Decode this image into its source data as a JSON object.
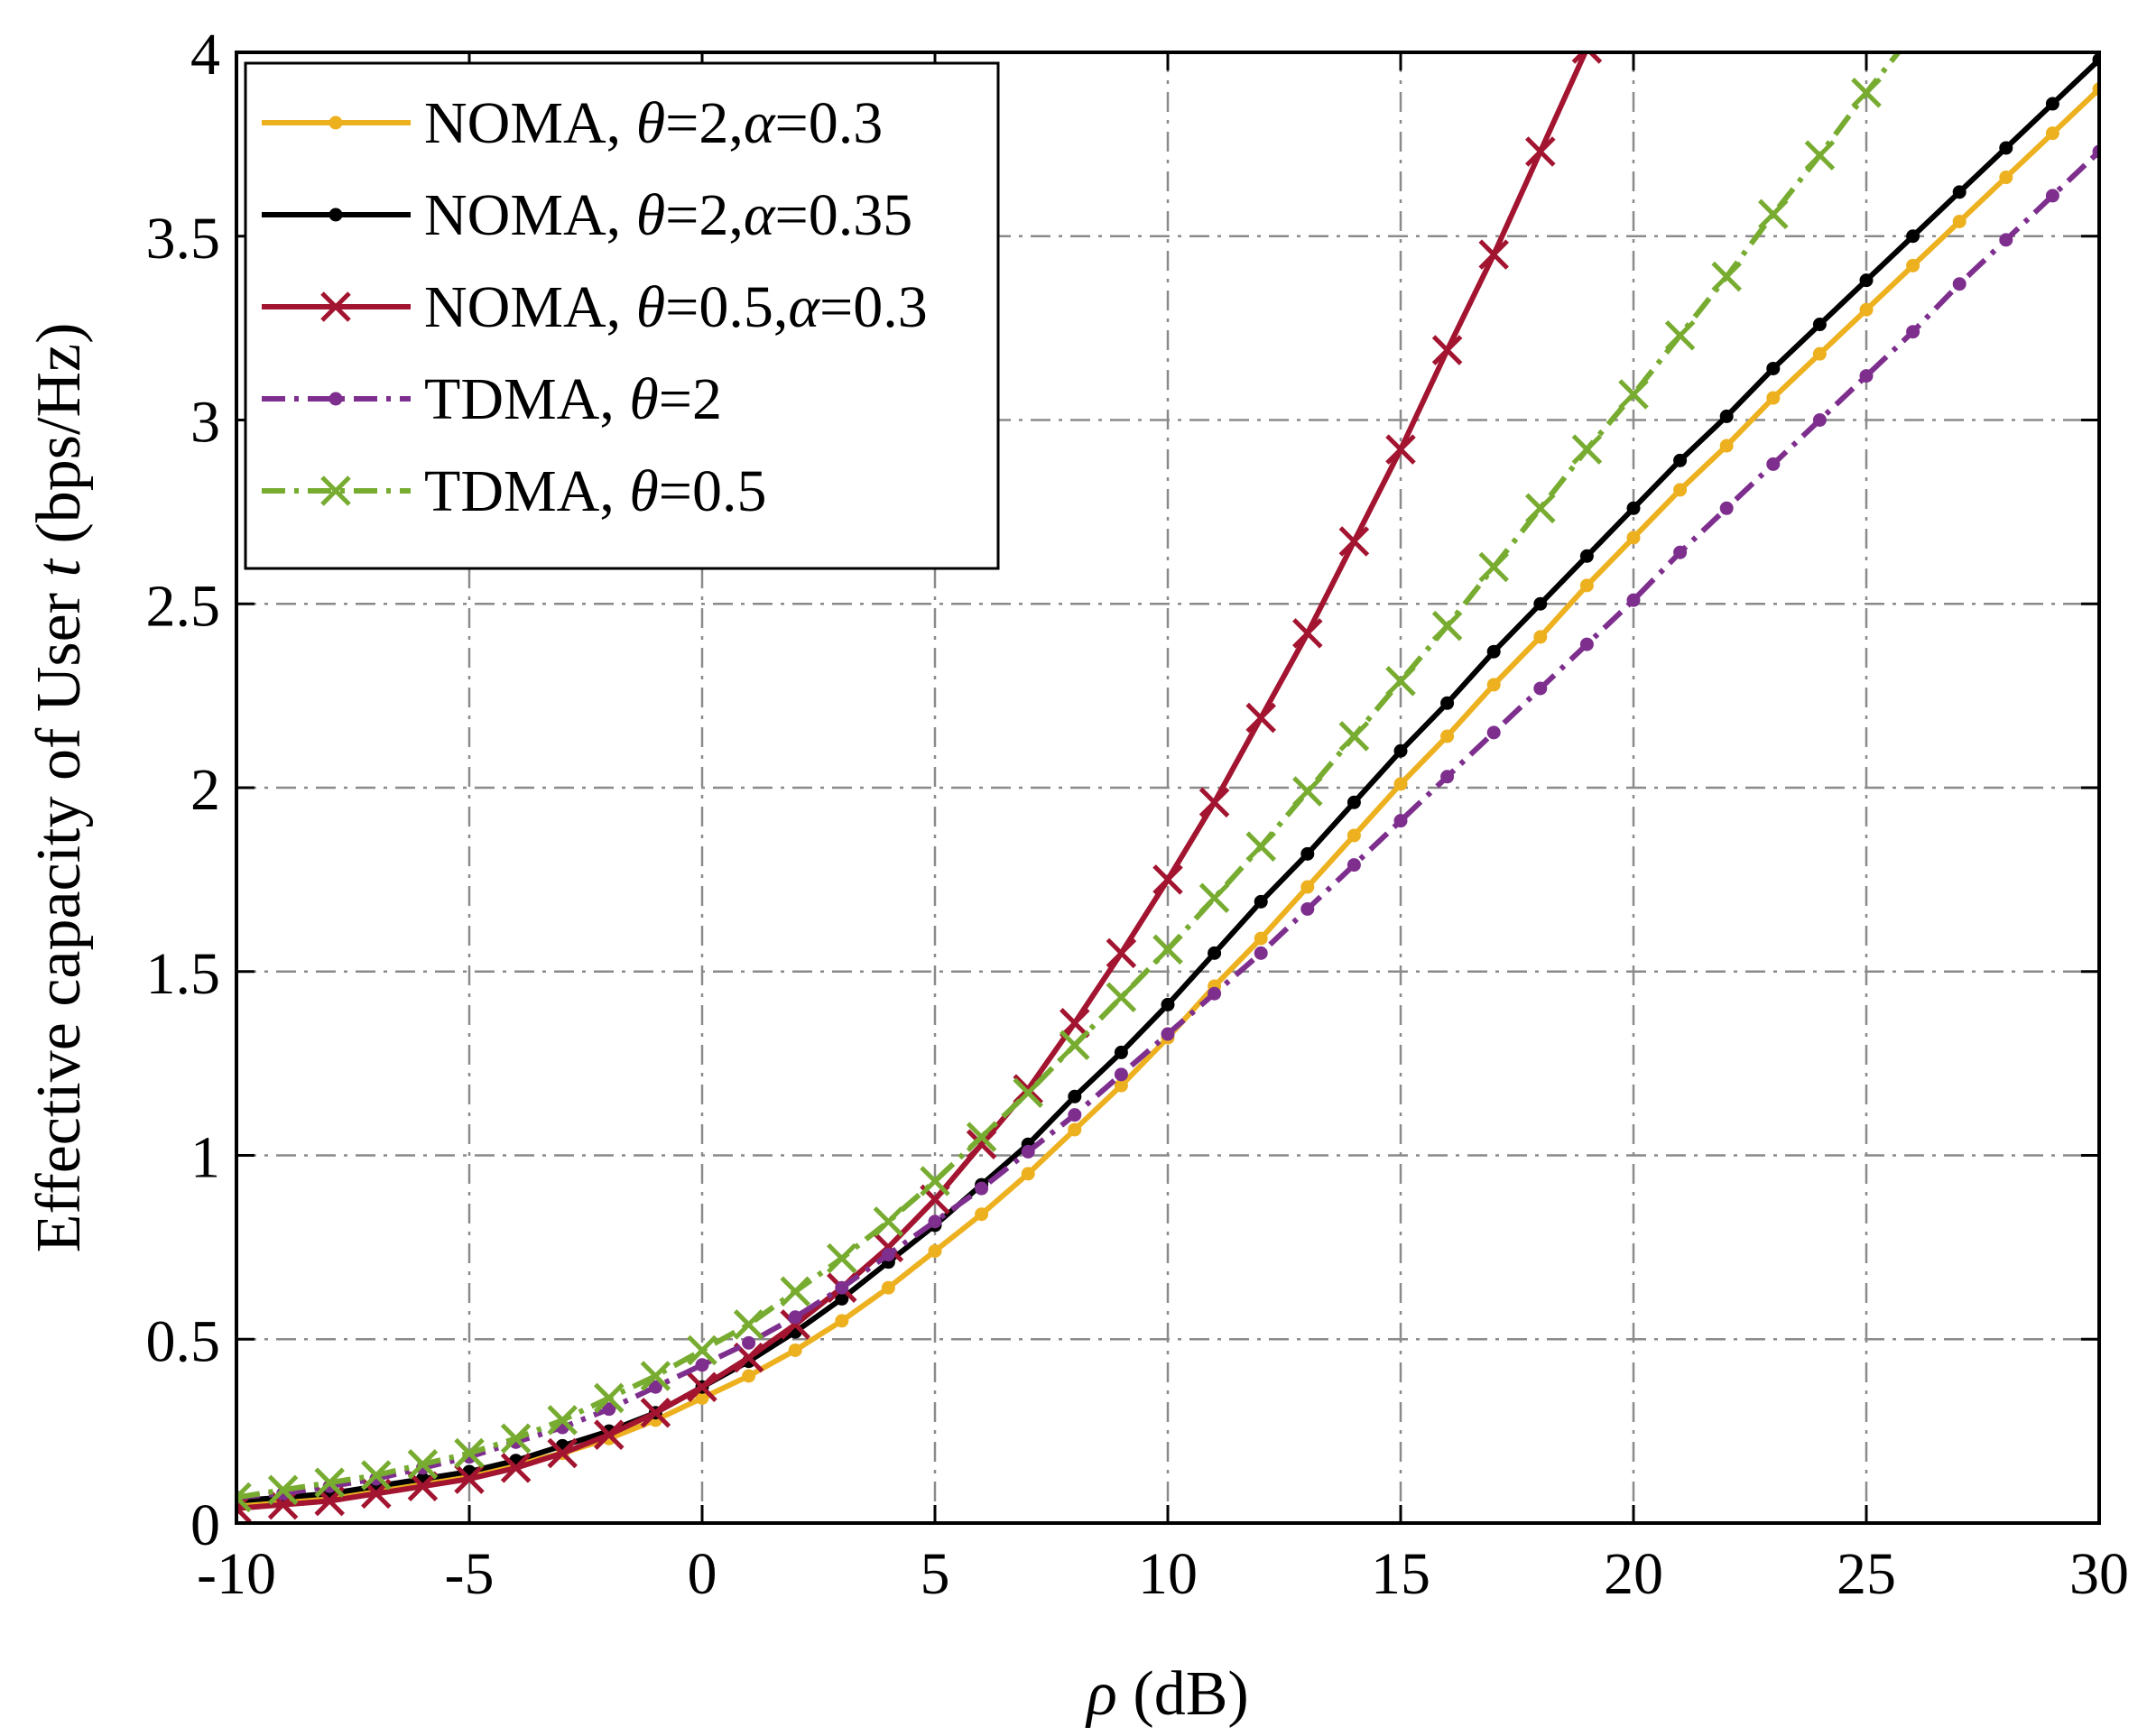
{
  "chart_data": {
    "type": "line",
    "xlabel_symbol": "ρ",
    "xlabel_unit": " (dB)",
    "ylabel_prefix": "Effective capacity of User ",
    "ylabel_symbol": "t",
    "ylabel_unit": " (bps/Hz)",
    "xlim": [
      -10,
      30
    ],
    "ylim": [
      0,
      4
    ],
    "xticks": [
      -10,
      -5,
      0,
      5,
      10,
      15,
      20,
      25,
      30
    ],
    "xtick_labels": [
      "-10",
      "-5",
      "0",
      "5",
      "10",
      "15",
      "20",
      "25",
      "30"
    ],
    "yticks": [
      0,
      0.5,
      1,
      1.5,
      2,
      2.5,
      3,
      3.5,
      4
    ],
    "ytick_labels": [
      "0",
      "0.5",
      "1",
      "1.5",
      "2",
      "2.5",
      "3",
      "3.5",
      "4"
    ],
    "grid": true,
    "legend_position": "top-left",
    "series": [
      {
        "name": "NOMA, θ=2,α=0.3",
        "legend": {
          "prefix": "NOMA, ",
          "parts": [
            [
              "θ",
              true
            ],
            [
              "=2,",
              false
            ],
            [
              "α",
              true
            ],
            [
              "=0.3",
              false
            ]
          ]
        },
        "color": "#EDB120",
        "dash": "solid",
        "marker": "dot",
        "x": [
          -10,
          -9,
          -8,
          -7,
          -6,
          -5,
          -4,
          -3,
          -2,
          -1,
          0,
          1,
          2,
          3,
          4,
          5,
          6,
          7,
          8,
          9,
          10,
          11,
          12,
          13,
          14,
          15,
          16,
          17,
          18,
          19,
          20,
          21,
          22,
          23,
          24,
          25,
          26,
          27,
          28,
          29,
          30
        ],
        "values": [
          0.05,
          0.06,
          0.07,
          0.09,
          0.11,
          0.13,
          0.16,
          0.19,
          0.23,
          0.28,
          0.34,
          0.4,
          0.47,
          0.55,
          0.64,
          0.74,
          0.84,
          0.95,
          1.07,
          1.19,
          1.32,
          1.46,
          1.59,
          1.73,
          1.87,
          2.01,
          2.14,
          2.28,
          2.41,
          2.55,
          2.68,
          2.81,
          2.93,
          3.06,
          3.18,
          3.3,
          3.42,
          3.54,
          3.66,
          3.78,
          3.9
        ]
      },
      {
        "name": "NOMA, θ=2,α=0.35",
        "legend": {
          "prefix": "NOMA, ",
          "parts": [
            [
              "θ",
              true
            ],
            [
              "=2,",
              false
            ],
            [
              "α",
              true
            ],
            [
              "=0.35",
              false
            ]
          ]
        },
        "color": "#000000",
        "dash": "solid",
        "marker": "dot",
        "x": [
          -10,
          -9,
          -8,
          -7,
          -6,
          -5,
          -4,
          -3,
          -2,
          -1,
          0,
          1,
          2,
          3,
          4,
          5,
          6,
          7,
          8,
          9,
          10,
          11,
          12,
          13,
          14,
          15,
          16,
          17,
          18,
          19,
          20,
          21,
          22,
          23,
          24,
          25,
          26,
          27,
          28,
          29,
          30
        ],
        "values": [
          0.06,
          0.07,
          0.08,
          0.1,
          0.12,
          0.14,
          0.17,
          0.21,
          0.25,
          0.3,
          0.37,
          0.44,
          0.52,
          0.61,
          0.71,
          0.81,
          0.92,
          1.03,
          1.16,
          1.28,
          1.41,
          1.55,
          1.69,
          1.82,
          1.96,
          2.1,
          2.23,
          2.37,
          2.5,
          2.63,
          2.76,
          2.89,
          3.01,
          3.14,
          3.26,
          3.38,
          3.5,
          3.62,
          3.74,
          3.86,
          3.98
        ]
      },
      {
        "name": "NOMA, θ=0.5,α=0.3",
        "legend": {
          "prefix": "NOMA, ",
          "parts": [
            [
              "θ",
              true
            ],
            [
              "=0.5,",
              false
            ],
            [
              "α",
              true
            ],
            [
              "=0.3",
              false
            ]
          ]
        },
        "color": "#A2142F",
        "dash": "solid",
        "marker": "x",
        "x": [
          -10,
          -9,
          -8,
          -7,
          -6,
          -5,
          -4,
          -3,
          -2,
          -1,
          0,
          1,
          2,
          3,
          4,
          5,
          6,
          7,
          8,
          9,
          10,
          11,
          12,
          13,
          14,
          15,
          16,
          17,
          18,
          19
        ],
        "values": [
          0.04,
          0.05,
          0.06,
          0.08,
          0.1,
          0.12,
          0.15,
          0.19,
          0.24,
          0.3,
          0.37,
          0.45,
          0.54,
          0.64,
          0.75,
          0.88,
          1.03,
          1.18,
          1.36,
          1.55,
          1.75,
          1.96,
          2.19,
          2.42,
          2.67,
          2.92,
          3.19,
          3.45,
          3.73,
          4.01
        ]
      },
      {
        "name": "TDMA, θ=2",
        "legend": {
          "prefix": "TDMA, ",
          "parts": [
            [
              "θ",
              true
            ],
            [
              "=2",
              false
            ]
          ]
        },
        "color": "#7E2F8E",
        "dash": "dashdot",
        "marker": "dot",
        "x": [
          -10,
          -9,
          -8,
          -7,
          -6,
          -5,
          -4,
          -3,
          -2,
          -1,
          0,
          1,
          2,
          3,
          4,
          5,
          6,
          7,
          8,
          9,
          10,
          11,
          12,
          13,
          14,
          15,
          16,
          17,
          18,
          19,
          20,
          21,
          22,
          23,
          24,
          25,
          26,
          27,
          28,
          29,
          30
        ],
        "values": [
          0.07,
          0.08,
          0.1,
          0.12,
          0.15,
          0.18,
          0.22,
          0.26,
          0.31,
          0.37,
          0.43,
          0.49,
          0.56,
          0.64,
          0.73,
          0.82,
          0.91,
          1.01,
          1.11,
          1.22,
          1.33,
          1.44,
          1.55,
          1.67,
          1.79,
          1.91,
          2.03,
          2.15,
          2.27,
          2.39,
          2.51,
          2.64,
          2.76,
          2.88,
          3.0,
          3.12,
          3.24,
          3.37,
          3.49,
          3.61,
          3.73
        ]
      },
      {
        "name": "TDMA, θ=0.5",
        "legend": {
          "prefix": "TDMA, ",
          "parts": [
            [
              "θ",
              true
            ],
            [
              "=0.5",
              false
            ]
          ]
        },
        "color": "#77AC30",
        "dash": "dashdot",
        "marker": "x",
        "x": [
          -10,
          -9,
          -8,
          -7,
          -6,
          -5,
          -4,
          -3,
          -2,
          -1,
          0,
          1,
          2,
          3,
          4,
          5,
          6,
          7,
          8,
          9,
          10,
          11,
          12,
          13,
          14,
          15,
          16,
          17,
          18,
          19,
          20,
          21,
          22,
          23,
          24,
          25,
          26
        ],
        "values": [
          0.07,
          0.09,
          0.11,
          0.13,
          0.16,
          0.19,
          0.23,
          0.28,
          0.34,
          0.4,
          0.47,
          0.54,
          0.63,
          0.72,
          0.82,
          0.93,
          1.05,
          1.17,
          1.3,
          1.43,
          1.56,
          1.7,
          1.84,
          1.99,
          2.14,
          2.29,
          2.44,
          2.6,
          2.76,
          2.92,
          3.07,
          3.23,
          3.39,
          3.56,
          3.72,
          3.89,
          4.05
        ]
      }
    ]
  }
}
